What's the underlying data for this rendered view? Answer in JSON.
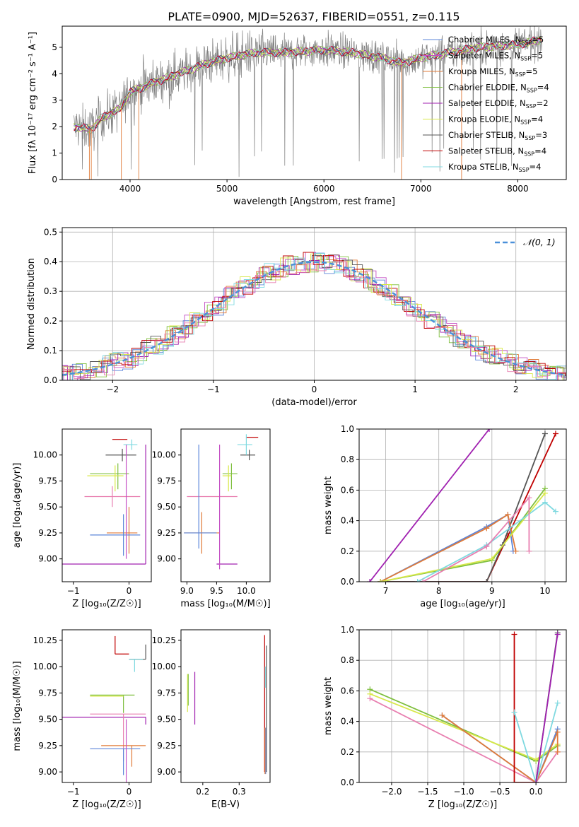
{
  "figure": {
    "title": "PLATE=0900, MJD=52637, FIBERID=0551, z=0.115"
  },
  "colors": {
    "Chabrier MILES": "#5b85d9",
    "Salpeter MILES": "#c44fc4",
    "Kroupa MILES": "#e07b39",
    "Chabrier ELODIE": "#7fbf3f",
    "Salpeter ELODIE": "#a020b0",
    "Kroupa ELODIE": "#d8e84a",
    "Chabrier STELIB": "#555555",
    "Salpeter STELIB": "#c00000",
    "Kroupa STELIB": "#7fd9e0",
    "pink": "#e87fb0",
    "data": "#808080",
    "normal": "#4a90d9"
  },
  "chart_data": [
    {
      "id": "spectrum",
      "type": "line",
      "xlabel": "wavelength [Angstrom, rest frame]",
      "ylabel": "Flux [f_λ 10^-17 erg cm^-2 s^-1 A^-1]",
      "xlim": [
        3300,
        8500
      ],
      "ylim": [
        0,
        5.8
      ],
      "xticks": [
        4000,
        5000,
        6000,
        7000,
        8000
      ],
      "yticks": [
        0,
        1,
        2,
        3,
        4,
        5
      ],
      "legend": [
        {
          "name": "Chabrier MILES",
          "nssp": "5"
        },
        {
          "name": "Salpeter MILES",
          "nssp": "5"
        },
        {
          "name": "Kroupa MILES",
          "nssp": "5"
        },
        {
          "name": "Chabrier ELODIE",
          "nssp": "4"
        },
        {
          "name": "Salpeter ELODIE",
          "nssp": "2"
        },
        {
          "name": "Kroupa ELODIE",
          "nssp": "4"
        },
        {
          "name": "Chabrier STELIB",
          "nssp": "3"
        },
        {
          "name": "Salpeter STELIB",
          "nssp": "4"
        },
        {
          "name": "Kroupa STELIB",
          "nssp": "4"
        }
      ],
      "continuum": [
        [
          3420,
          2.0
        ],
        [
          3600,
          1.9
        ],
        [
          3700,
          2.3
        ],
        [
          3800,
          2.5
        ],
        [
          3900,
          2.7
        ],
        [
          4000,
          3.3
        ],
        [
          4200,
          3.6
        ],
        [
          4500,
          4.0
        ],
        [
          4800,
          4.4
        ],
        [
          5000,
          4.6
        ],
        [
          5300,
          4.8
        ],
        [
          5600,
          4.8
        ],
        [
          6000,
          4.9
        ],
        [
          6300,
          4.8
        ],
        [
          6600,
          4.6
        ],
        [
          6800,
          4.4
        ],
        [
          7000,
          4.6
        ],
        [
          7300,
          4.8
        ],
        [
          7600,
          5.0
        ],
        [
          8000,
          5.1
        ],
        [
          8250,
          5.3
        ]
      ],
      "grid": false,
      "legend_position": "top-right"
    },
    {
      "id": "residuals",
      "type": "line",
      "xlabel": "(data-model)/error",
      "ylabel": "Normed distribution",
      "xlim": [
        -2.5,
        2.5
      ],
      "ylim": [
        0,
        0.515
      ],
      "xticks": [
        -2,
        -1,
        0,
        1,
        2
      ],
      "yticks": [
        0.0,
        0.1,
        0.2,
        0.3,
        0.4,
        0.5
      ],
      "legend": [
        "N(0,1)"
      ],
      "grid": true,
      "legend_position": "top-right"
    },
    {
      "id": "age_vs_Z",
      "type": "scatter",
      "xlabel": "Z [log10(Z/Z☉)]",
      "ylabel": "age [log10(age/yr)]",
      "xlim": [
        -1.2,
        0.4
      ],
      "ylim": [
        8.78,
        10.25
      ],
      "xticks": [
        -1,
        0
      ],
      "yticks": [
        9.0,
        9.25,
        9.5,
        9.75,
        10.0
      ],
      "points": [
        {
          "x": -0.12,
          "y": 10.0,
          "xerr": [
            0.3,
            0.25
          ],
          "yerr": [
            0.06,
            0.06
          ],
          "color": "Chabrier STELIB"
        },
        {
          "x": -0.15,
          "y": 10.15,
          "xerr": [
            0.15,
            0.12
          ],
          "yerr": [
            0.0,
            0.0
          ],
          "color": "Salpeter STELIB"
        },
        {
          "x": 0.05,
          "y": 10.1,
          "xerr": [
            0.15,
            0.1
          ],
          "yerr": [
            0.05,
            0.05
          ],
          "color": "Kroupa STELIB"
        },
        {
          "x": -0.2,
          "y": 9.82,
          "xerr": [
            0.5,
            0.2
          ],
          "yerr": [
            0.15,
            0.1
          ],
          "color": "Chabrier ELODIE"
        },
        {
          "x": -0.25,
          "y": 9.8,
          "xerr": [
            0.5,
            0.15
          ],
          "yerr": [
            0.15,
            0.1
          ],
          "color": "Kroupa ELODIE"
        },
        {
          "x": -0.3,
          "y": 9.6,
          "xerr": [
            0.5,
            0.5
          ],
          "yerr": [
            0.1,
            0.1
          ],
          "color": "pink"
        },
        {
          "x": 0.0,
          "y": 9.25,
          "xerr": [
            0.4,
            0.15
          ],
          "yerr": [
            0.2,
            0.25
          ],
          "color": "Kroupa MILES"
        },
        {
          "x": -0.1,
          "y": 9.23,
          "xerr": [
            0.6,
            0.3
          ],
          "yerr": [
            0.2,
            0.2
          ],
          "color": "Chabrier MILES"
        },
        {
          "x": 0.3,
          "y": 8.95,
          "xerr": [
            1.5,
            0.0
          ],
          "yerr": [
            0.0,
            1.15
          ],
          "color": "Salpeter ELODIE"
        },
        {
          "x": -0.05,
          "y": 9.0,
          "xerr": [
            0.0,
            0.0
          ],
          "yerr": [
            0.0,
            1.1
          ],
          "color": "Salpeter MILES"
        }
      ]
    },
    {
      "id": "age_vs_mass",
      "type": "scatter",
      "xlabel": "mass [log10(M/M☉)]",
      "ylabel": "",
      "xlim": [
        8.9,
        10.4
      ],
      "ylim": [
        8.78,
        10.25
      ],
      "xticks": [
        9.0,
        9.5,
        10.0
      ],
      "yticks": [
        9.0,
        9.25,
        9.5,
        9.75,
        10.0
      ],
      "points": [
        {
          "x": 10.05,
          "y": 10.17,
          "xerr": [
            0.05,
            0.15
          ],
          "yerr": [
            0.0,
            0.0
          ],
          "color": "Salpeter STELIB"
        },
        {
          "x": 10.05,
          "y": 10.0,
          "xerr": [
            0.15,
            0.1
          ],
          "yerr": [
            0.05,
            0.05
          ],
          "color": "Chabrier STELIB"
        },
        {
          "x": 10.0,
          "y": 10.1,
          "xerr": [
            0.15,
            0.1
          ],
          "yerr": [
            0.1,
            0.1
          ],
          "color": "Kroupa STELIB"
        },
        {
          "x": 9.75,
          "y": 9.82,
          "xerr": [
            0.15,
            0.1
          ],
          "yerr": [
            0.15,
            0.1
          ],
          "color": "Chabrier ELODIE"
        },
        {
          "x": 9.7,
          "y": 9.8,
          "xerr": [
            0.1,
            0.05
          ],
          "yerr": [
            0.15,
            0.1
          ],
          "color": "Kroupa ELODIE"
        },
        {
          "x": 9.5,
          "y": 9.6,
          "xerr": [
            0.5,
            0.35
          ],
          "yerr": [
            0.0,
            0.0
          ],
          "color": "pink"
        },
        {
          "x": 9.25,
          "y": 9.25,
          "xerr": [
            0.3,
            0.3
          ],
          "yerr": [
            0.2,
            0.2
          ],
          "color": "Kroupa MILES"
        },
        {
          "x": 9.2,
          "y": 9.25,
          "xerr": [
            0.25,
            0.3
          ],
          "yerr": [
            0.15,
            0.85
          ],
          "color": "Chabrier MILES"
        },
        {
          "x": 9.6,
          "y": 8.95,
          "xerr": [
            0.1,
            0.25
          ],
          "yerr": [
            0.0,
            0.0
          ],
          "color": "Salpeter ELODIE"
        },
        {
          "x": 9.55,
          "y": 9.0,
          "xerr": [
            0.0,
            0.0
          ],
          "yerr": [
            0.1,
            1.1
          ],
          "color": "Salpeter MILES"
        }
      ]
    },
    {
      "id": "weight_vs_age",
      "type": "line",
      "xlabel": "age [log10(age/yr)]",
      "ylabel": "mass weight",
      "xlim": [
        6.5,
        10.4
      ],
      "ylim": [
        0,
        1.0
      ],
      "xticks": [
        7,
        8,
        9,
        10
      ],
      "yticks": [
        0.0,
        0.2,
        0.4,
        0.6,
        0.8,
        1.0
      ],
      "grid": true,
      "series": [
        {
          "color": "Salpeter ELODIE",
          "x": [
            6.7,
            8.95
          ],
          "y": [
            0.0,
            1.0
          ]
        },
        {
          "color": "Salpeter STELIB",
          "x": [
            6.9,
            8.9,
            9.3,
            10.2
          ],
          "y": [
            0.0,
            0.0,
            0.3,
            0.97
          ]
        },
        {
          "color": "Chabrier STELIB",
          "x": [
            6.9,
            8.9,
            9.2,
            10.0
          ],
          "y": [
            0.0,
            0.0,
            0.24,
            0.97
          ]
        },
        {
          "color": "Chabrier MILES",
          "x": [
            6.9,
            8.9,
            9.3,
            9.4
          ],
          "y": [
            0.0,
            0.36,
            0.44,
            0.2
          ]
        },
        {
          "color": "Kroupa MILES",
          "x": [
            6.9,
            8.9,
            9.3,
            9.45
          ],
          "y": [
            0.0,
            0.35,
            0.44,
            0.2
          ]
        },
        {
          "color": "Chabrier ELODIE",
          "x": [
            6.9,
            9.0,
            10.0
          ],
          "y": [
            0.0,
            0.14,
            0.61
          ]
        },
        {
          "color": "Kroupa ELODIE",
          "x": [
            6.9,
            9.0,
            10.0
          ],
          "y": [
            0.0,
            0.15,
            0.58
          ]
        },
        {
          "color": "Kroupa STELIB",
          "x": [
            7.6,
            8.9,
            10.0,
            10.2
          ],
          "y": [
            0.0,
            0.24,
            0.52,
            0.46
          ]
        },
        {
          "color": "pink",
          "x": [
            7.7,
            8.9,
            9.7,
            9.7
          ],
          "y": [
            0.0,
            0.23,
            0.55,
            0.2
          ]
        }
      ]
    },
    {
      "id": "mass_vs_Z",
      "type": "scatter",
      "xlabel": "Z [log10(Z/Z☉)]",
      "ylabel": "mass [log10(M/M☉)]",
      "xlim": [
        -1.2,
        0.4
      ],
      "ylim": [
        8.9,
        10.35
      ],
      "xticks": [
        -1,
        0
      ],
      "yticks": [
        9.0,
        9.25,
        9.5,
        9.75,
        10.0,
        10.25
      ],
      "points": [
        {
          "x": -0.25,
          "y": 10.12,
          "xerr": [
            0.0,
            0.25
          ],
          "yerr": [
            0.0,
            0.17
          ],
          "color": "Salpeter STELIB"
        },
        {
          "x": 0.3,
          "y": 10.07,
          "xerr": [
            0.3,
            0.0
          ],
          "yerr": [
            0.0,
            0.14
          ],
          "color": "Chabrier STELIB"
        },
        {
          "x": 0.1,
          "y": 10.07,
          "xerr": [
            0.1,
            0.15
          ],
          "yerr": [
            0.12,
            0.0
          ],
          "color": "Kroupa STELIB"
        },
        {
          "x": -0.1,
          "y": 9.73,
          "xerr": [
            0.6,
            0.2
          ],
          "yerr": [
            0.17,
            0.0
          ],
          "color": "Chabrier ELODIE"
        },
        {
          "x": -0.2,
          "y": 9.72,
          "xerr": [
            0.5,
            0.1
          ],
          "yerr": [
            0.0,
            0.0
          ],
          "color": "Kroupa ELODIE"
        },
        {
          "x": 0.3,
          "y": 9.52,
          "xerr": [
            1.5,
            0.0
          ],
          "yerr": [
            0.07,
            0.0
          ],
          "color": "Salpeter ELODIE"
        },
        {
          "x": -0.1,
          "y": 9.55,
          "xerr": [
            0.6,
            0.4
          ],
          "yerr": [
            0.45,
            0.0
          ],
          "color": "pink"
        },
        {
          "x": 0.05,
          "y": 9.25,
          "xerr": [
            0.55,
            0.25
          ],
          "yerr": [
            0.2,
            0.0
          ],
          "color": "Kroupa MILES"
        },
        {
          "x": -0.1,
          "y": 9.22,
          "xerr": [
            0.6,
            0.3
          ],
          "yerr": [
            0.25,
            0.0
          ],
          "color": "Chabrier MILES"
        },
        {
          "x": -0.05,
          "y": 9.0,
          "xerr": [
            0.0,
            0.0
          ],
          "yerr": [
            0.12,
            0.5
          ],
          "color": "Salpeter MILES"
        }
      ]
    },
    {
      "id": "mass_vs_ebv",
      "type": "scatter",
      "xlabel": "E(B-V)",
      "ylabel": "",
      "xlim": [
        0.14,
        0.385
      ],
      "ylim": [
        8.9,
        10.35
      ],
      "xticks": [
        0.2,
        0.3
      ],
      "yticks": [
        9.0,
        9.25,
        9.5,
        9.75,
        10.0,
        10.25
      ],
      "points": [
        {
          "x": 0.158,
          "y": 9.75,
          "yerr": [
            0.18,
            0.18
          ],
          "color": "Kroupa ELODIE"
        },
        {
          "x": 0.16,
          "y": 9.78,
          "yerr": [
            0.15,
            0.15
          ],
          "color": "Chabrier ELODIE"
        },
        {
          "x": 0.178,
          "y": 9.7,
          "yerr": [
            0.25,
            0.25
          ],
          "color": "Salpeter ELODIE"
        },
        {
          "x": 0.37,
          "y": 9.65,
          "yerr": [
            0.65,
            0.65
          ],
          "color": "Salpeter STELIB"
        },
        {
          "x": 0.375,
          "y": 9.55,
          "yerr": [
            0.55,
            0.65
          ],
          "color": "Chabrier STELIB"
        },
        {
          "x": 0.372,
          "y": 9.9,
          "yerr": [
            0.1,
            0.1
          ],
          "color": "Kroupa STELIB"
        },
        {
          "x": 0.373,
          "y": 9.2,
          "yerr": [
            0.22,
            0.22
          ],
          "color": "Chabrier MILES"
        },
        {
          "x": 0.371,
          "y": 9.2,
          "yerr": [
            0.22,
            0.22
          ],
          "color": "Kroupa MILES"
        }
      ]
    },
    {
      "id": "weight_vs_Z",
      "type": "line",
      "xlabel": "Z [log10(Z/Z☉)]",
      "ylabel": "mass weight",
      "xlim": [
        -2.45,
        0.42
      ],
      "ylim": [
        0,
        1.0
      ],
      "xticks": [
        -2.0,
        -1.5,
        -1.0,
        -0.5,
        0.0
      ],
      "yticks": [
        0.0,
        0.2,
        0.4,
        0.6,
        0.8,
        1.0
      ],
      "grid": true,
      "series": [
        {
          "color": "Chabrier ELODIE",
          "x": [
            -2.3,
            0.0,
            0.3
          ],
          "y": [
            0.61,
            0.14,
            0.24
          ]
        },
        {
          "color": "Kroupa ELODIE",
          "x": [
            -2.3,
            0.0,
            0.3
          ],
          "y": [
            0.58,
            0.15,
            0.25
          ]
        },
        {
          "color": "pink",
          "x": [
            -2.3,
            0.0,
            0.3
          ],
          "y": [
            0.55,
            0.0,
            0.2
          ]
        },
        {
          "color": "Chabrier MILES",
          "x": [
            -1.3,
            0.0,
            0.3
          ],
          "y": [
            0.44,
            0.0,
            0.35
          ]
        },
        {
          "color": "Kroupa MILES",
          "x": [
            -1.3,
            0.0,
            0.3,
            0.3
          ],
          "y": [
            0.44,
            0.0,
            0.33,
            0.2
          ]
        },
        {
          "color": "Salpeter STELIB",
          "x": [
            -0.3,
            -0.3,
            0.0
          ],
          "y": [
            0.97,
            0.0,
            0.0
          ]
        },
        {
          "color": "Kroupa STELIB",
          "x": [
            -0.3,
            0.0,
            0.3
          ],
          "y": [
            0.46,
            0.0,
            0.52
          ]
        },
        {
          "color": "Chabrier STELIB",
          "x": [
            0.0,
            0.3
          ],
          "y": [
            0.0,
            0.98
          ]
        },
        {
          "color": "Salpeter ELODIE",
          "x": [
            0.0,
            0.3
          ],
          "y": [
            0.0,
            0.97
          ]
        }
      ]
    }
  ]
}
